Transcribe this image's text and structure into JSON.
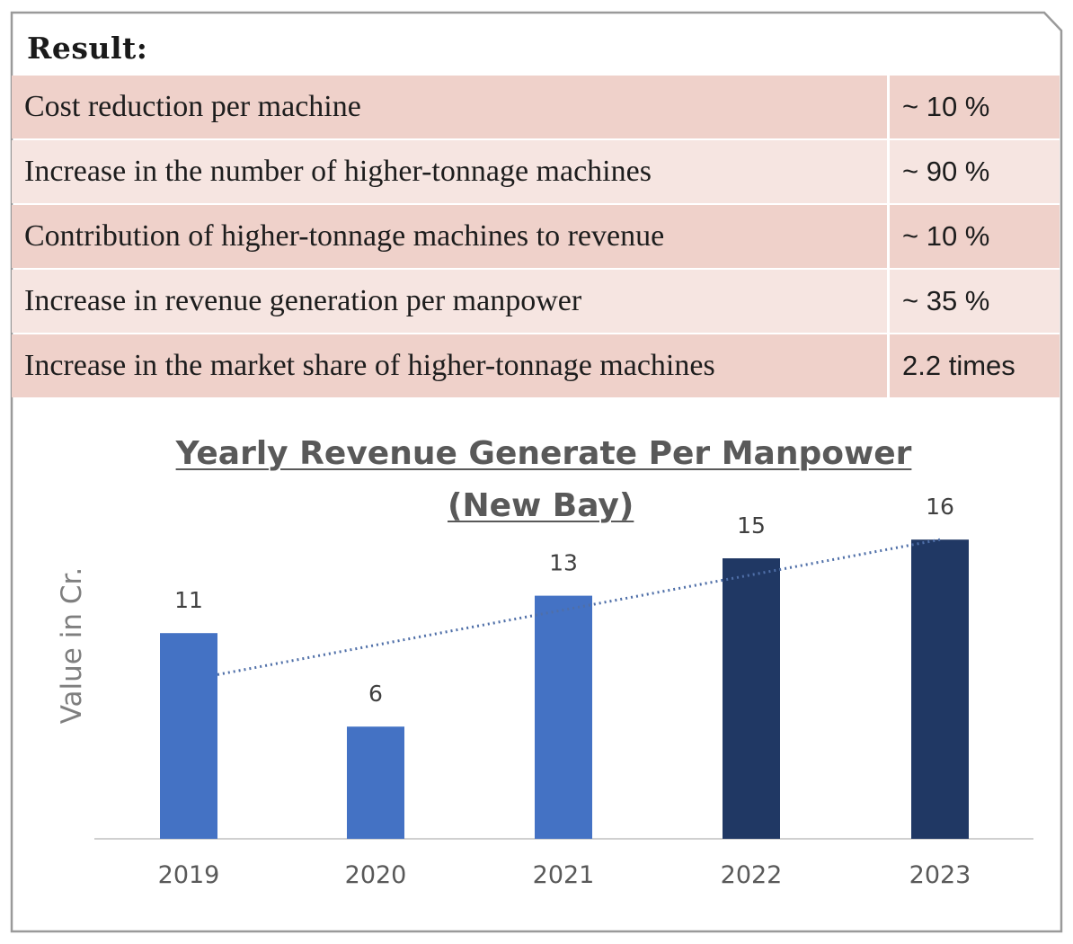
{
  "heading": "Result:",
  "results": [
    {
      "label": "Cost reduction per machine",
      "value": "~ 10 %"
    },
    {
      "label": "Increase in the number of higher-tonnage machines",
      "value": "~ 90 %"
    },
    {
      "label": "Contribution of higher-tonnage machines to revenue",
      "value": "~ 10 %"
    },
    {
      "label": "Increase in revenue generation per manpower",
      "value": "~ 35 %"
    },
    {
      "label": "Increase in the market share of higher-tonnage machines",
      "value": "2.2 times"
    }
  ],
  "colors": {
    "table_row_dark": "#efd1ca",
    "table_row_light": "#f6e5e1",
    "bar_light": "#4472c4",
    "bar_dark": "#203864",
    "trendline": "#4f6fa8"
  },
  "chart_data": {
    "type": "bar",
    "title": "Yearly Revenue Generate Per Manpower",
    "subtitle": "(New Bay)",
    "ylabel": "Value in Cr.",
    "xlabel": "",
    "categories": [
      "2019",
      "2020",
      "2021",
      "2022",
      "2023"
    ],
    "values": [
      11,
      6,
      13,
      15,
      16
    ],
    "data_labels": [
      "11",
      "6",
      "13",
      "15",
      "16"
    ],
    "bar_colors": [
      "#4472c4",
      "#4472c4",
      "#4472c4",
      "#203864",
      "#203864"
    ],
    "ylim": [
      0,
      20
    ],
    "trendline": "linear (dotted)",
    "grid": false,
    "legend": "none"
  }
}
